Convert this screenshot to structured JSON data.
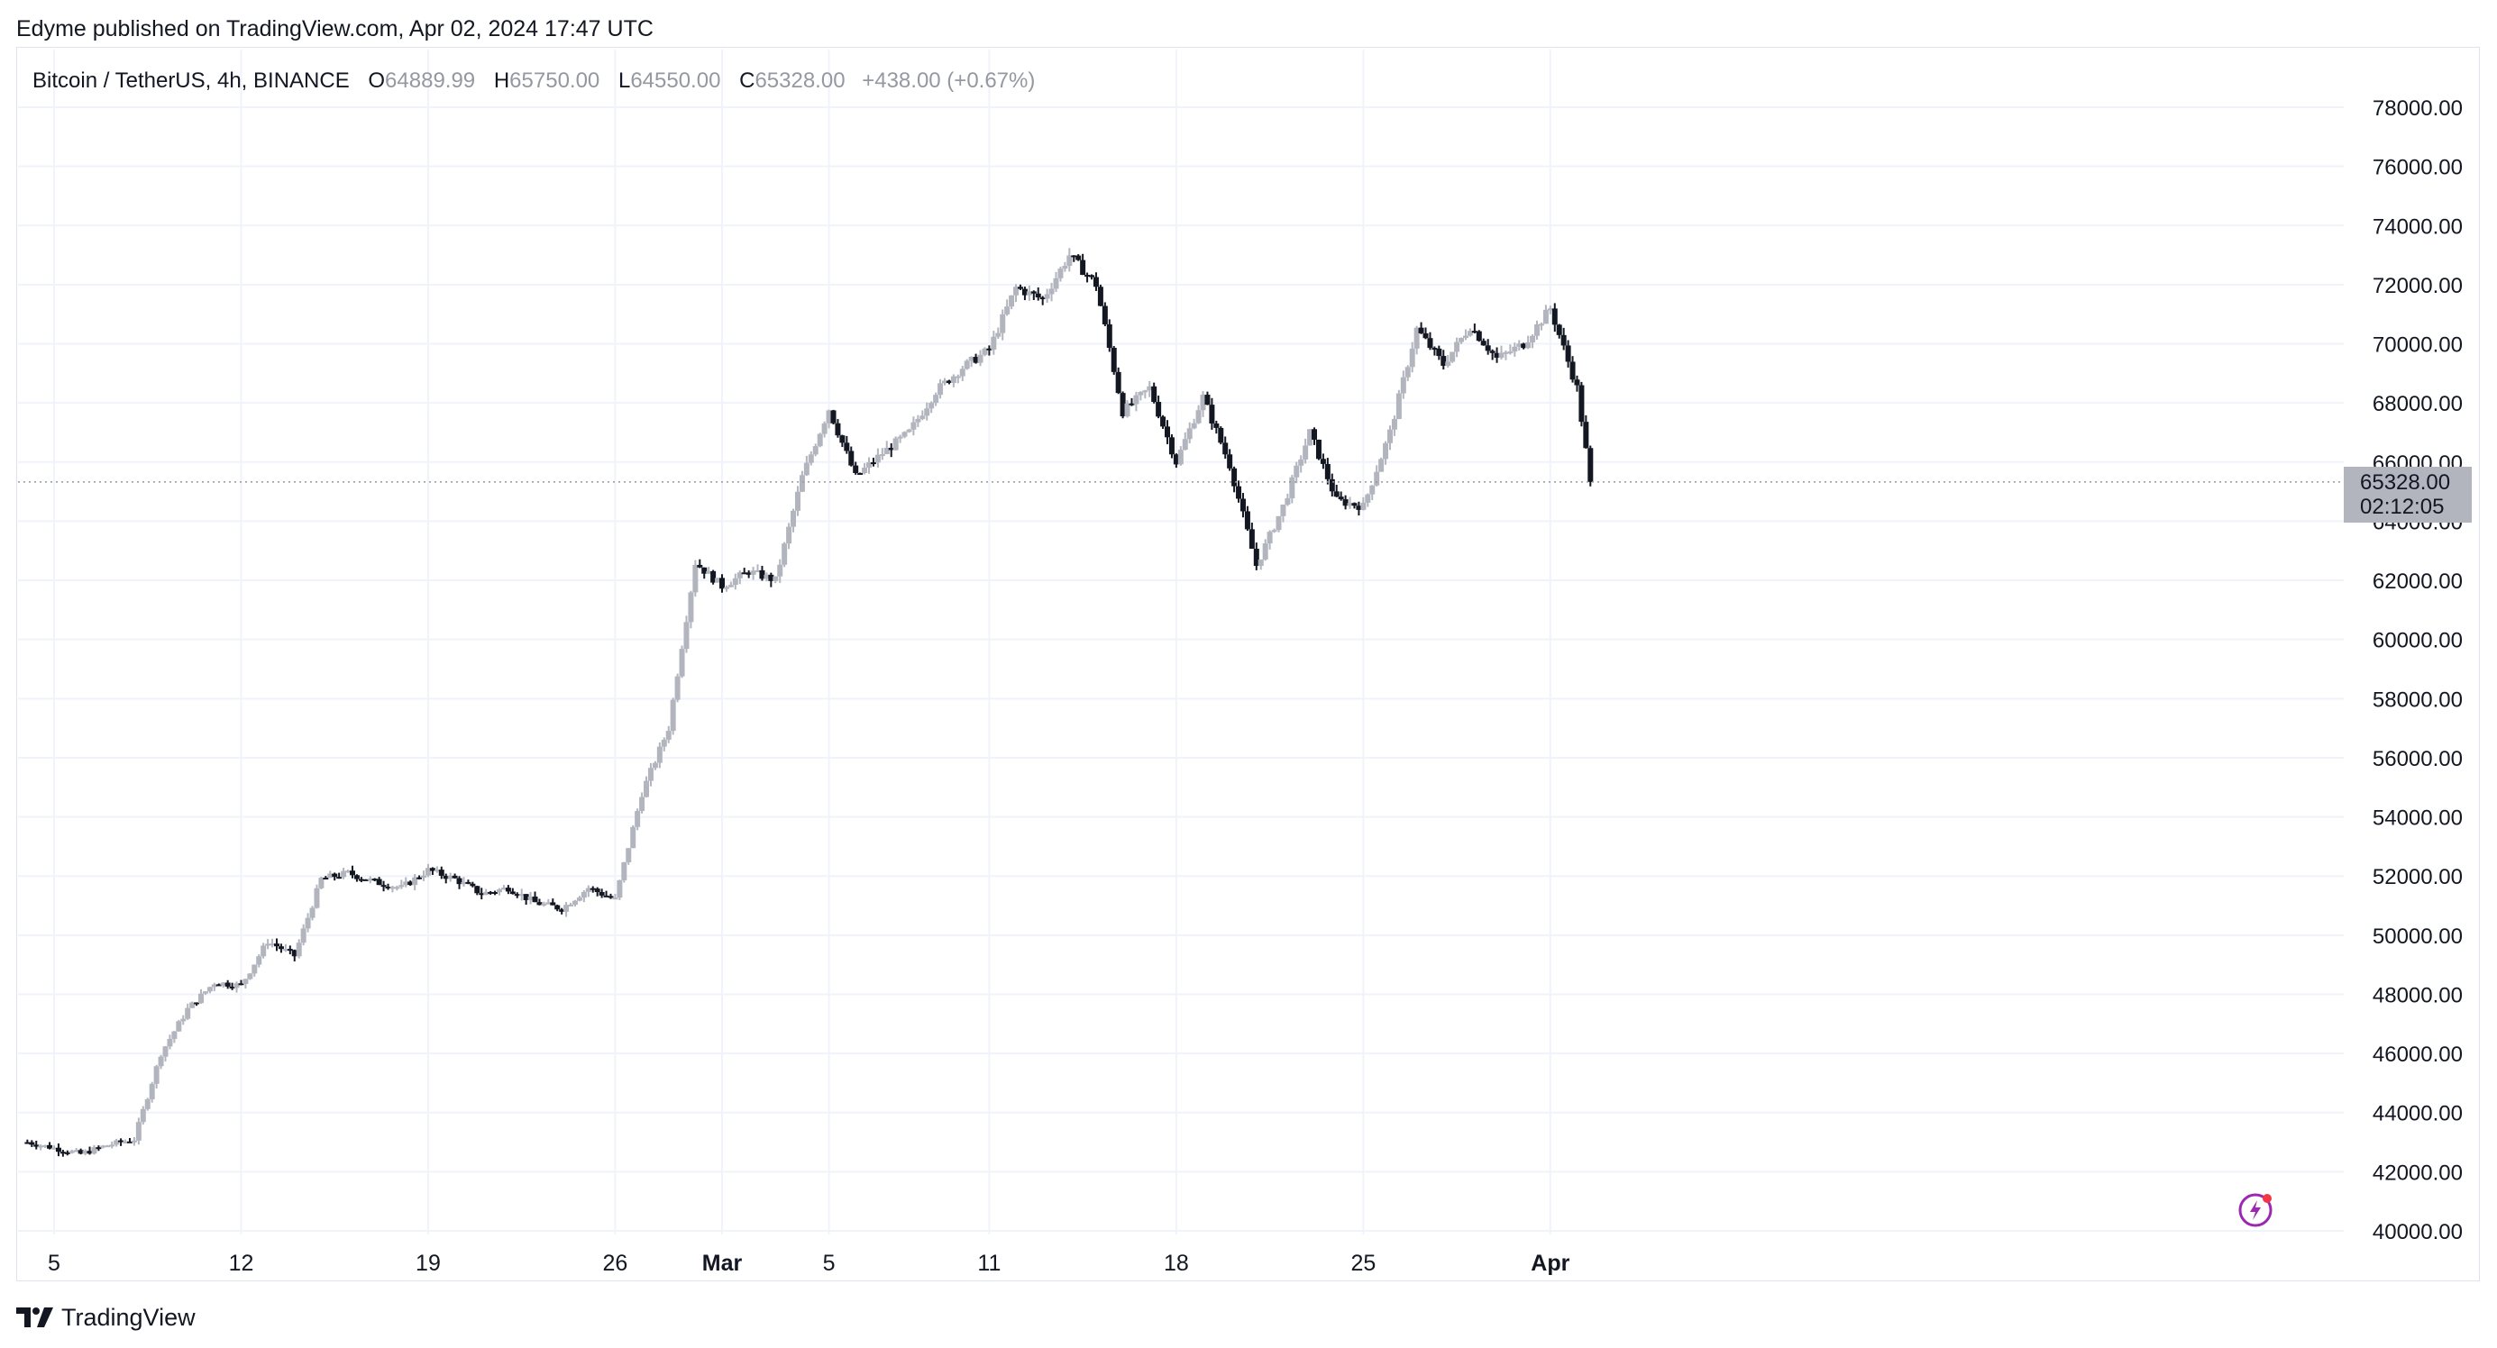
{
  "header": {
    "published": "Edyme published on TradingView.com, Apr 02, 2024 17:47 UTC"
  },
  "legend": {
    "symbol": "Bitcoin / TetherUS, 4h, BINANCE",
    "o_label": "O",
    "o_value": "64889.99",
    "h_label": "H",
    "h_value": "65750.00",
    "l_label": "L",
    "l_value": "64550.00",
    "c_label": "C",
    "c_value": "65328.00",
    "change": "+438.00 (+0.67%)"
  },
  "price_tag": {
    "price": "65328.00",
    "countdown": "02:12:05"
  },
  "footer": {
    "brand": "TradingView"
  },
  "colors": {
    "up": "#b2b5be",
    "down": "#131722",
    "grid": "#f0f3fa",
    "axis_text": "#131722"
  },
  "chart_data": {
    "type": "candlestick",
    "symbol": "Bitcoin / TetherUS",
    "interval": "4h",
    "exchange": "BINANCE",
    "ylim": [
      40000,
      78800
    ],
    "y_ticks": [
      "40000.00",
      "42000.00",
      "44000.00",
      "46000.00",
      "48000.00",
      "50000.00",
      "52000.00",
      "54000.00",
      "56000.00",
      "58000.00",
      "60000.00",
      "62000.00",
      "64000.00",
      "66000.00",
      "68000.00",
      "70000.00",
      "72000.00",
      "74000.00",
      "76000.00",
      "78000.00"
    ],
    "x_ticks": [
      {
        "label": "5",
        "day": 5,
        "bold": false
      },
      {
        "label": "12",
        "day": 12,
        "bold": false
      },
      {
        "label": "19",
        "day": 19,
        "bold": false
      },
      {
        "label": "26",
        "day": 26,
        "bold": false
      },
      {
        "label": "Mar",
        "day": 30,
        "bold": true
      },
      {
        "label": "5",
        "day": 34,
        "bold": false
      },
      {
        "label": "11",
        "day": 40,
        "bold": false
      },
      {
        "label": "18",
        "day": 47,
        "bold": false
      },
      {
        "label": "25",
        "day": 54,
        "bold": false
      },
      {
        "label": "Apr",
        "day": 61,
        "bold": true
      }
    ],
    "daily_closes": [
      [
        4,
        43000
      ],
      [
        5,
        42800
      ],
      [
        6,
        42600
      ],
      [
        7,
        42900
      ],
      [
        8,
        43100
      ],
      [
        9,
        46000
      ],
      [
        10,
        47500
      ],
      [
        11,
        48400
      ],
      [
        12,
        48300
      ],
      [
        13,
        49800
      ],
      [
        14,
        49300
      ],
      [
        15,
        51900
      ],
      [
        16,
        52100
      ],
      [
        17,
        51800
      ],
      [
        18,
        51600
      ],
      [
        19,
        52200
      ],
      [
        20,
        51900
      ],
      [
        21,
        51400
      ],
      [
        22,
        51600
      ],
      [
        23,
        51100
      ],
      [
        24,
        50900
      ],
      [
        25,
        51600
      ],
      [
        26,
        51200
      ],
      [
        27,
        54800
      ],
      [
        28,
        57000
      ],
      [
        29,
        62600
      ],
      [
        30,
        61800
      ],
      [
        31,
        62300
      ],
      [
        32,
        62000
      ],
      [
        33,
        65500
      ],
      [
        34,
        67800
      ],
      [
        35,
        65500
      ],
      [
        36,
        66300
      ],
      [
        37,
        67000
      ],
      [
        38,
        68400
      ],
      [
        39,
        69200
      ],
      [
        40,
        69800
      ],
      [
        41,
        71900
      ],
      [
        42,
        71500
      ],
      [
        43,
        73000
      ],
      [
        44,
        72000
      ],
      [
        45,
        67700
      ],
      [
        46,
        68500
      ],
      [
        47,
        66000
      ],
      [
        48,
        68200
      ],
      [
        49,
        65900
      ],
      [
        50,
        62500
      ],
      [
        51,
        64500
      ],
      [
        52,
        67000
      ],
      [
        53,
        64700
      ],
      [
        54,
        64500
      ],
      [
        55,
        67000
      ],
      [
        56,
        70500
      ],
      [
        57,
        69300
      ],
      [
        58,
        70600
      ],
      [
        59,
        69500
      ],
      [
        60,
        70000
      ],
      [
        61,
        71200
      ],
      [
        62,
        68500
      ],
      [
        62.5,
        65328
      ]
    ],
    "last": {
      "open": 64889.99,
      "high": 65750.0,
      "low": 64550.0,
      "close": 65328.0,
      "change": 438.0,
      "change_pct": 0.67
    },
    "current_price_line": 65328.0
  }
}
